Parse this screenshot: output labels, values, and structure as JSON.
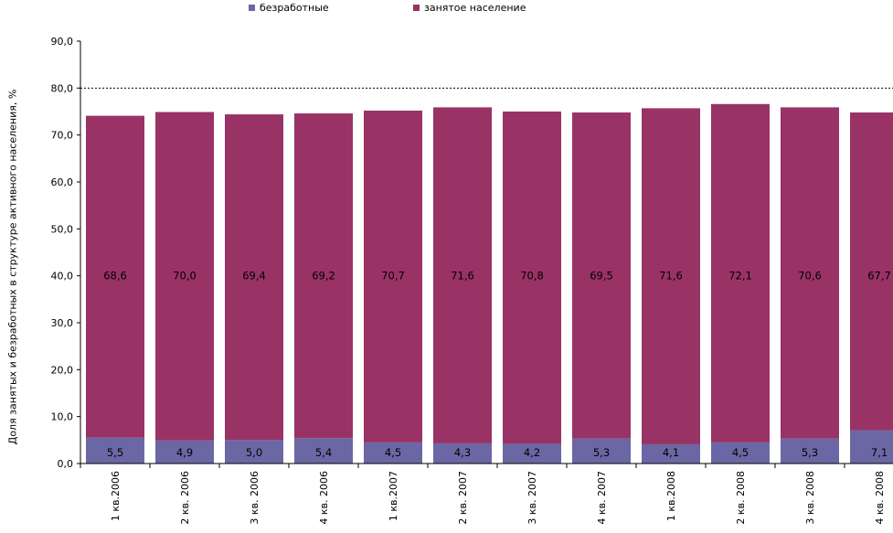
{
  "chart_data": {
    "type": "bar",
    "stacked": true,
    "title": "",
    "xlabel": "",
    "ylabel": "Доля занятых и безработных в структуре активного населения, %",
    "ylim": [
      0,
      90
    ],
    "yticks": [
      "0,0",
      "10,0",
      "20,0",
      "30,0",
      "40,0",
      "50,0",
      "60,0",
      "70,0",
      "80,0",
      "90,0"
    ],
    "grid": "dashed line at 80",
    "legend_position": "top",
    "categories": [
      "1 кв.2006",
      "2 кв. 2006",
      "3 кв. 2006",
      "4 кв. 2006",
      "1 кв.2007",
      "2 кв. 2007",
      "3 кв. 2007",
      "4 кв. 2007",
      "1 кв.2008",
      "2 кв. 2008",
      "3 кв. 2008",
      "4 кв. 2008"
    ],
    "series": [
      {
        "name": "безработные",
        "color": "#6b67a4",
        "values": [
          5.5,
          4.9,
          5.0,
          5.4,
          4.5,
          4.3,
          4.2,
          5.3,
          4.1,
          4.5,
          5.3,
          7.1
        ],
        "labels": [
          "5,5",
          "4,9",
          "5,0",
          "5,4",
          "4,5",
          "4,3",
          "4,2",
          "5,3",
          "4,1",
          "4,5",
          "5,3",
          "7,1"
        ]
      },
      {
        "name": "занятое население",
        "color": "#993366",
        "values": [
          68.6,
          70.0,
          69.4,
          69.2,
          70.7,
          71.6,
          70.8,
          69.5,
          71.6,
          72.1,
          70.6,
          67.7
        ],
        "labels": [
          "68,6",
          "70,0",
          "69,4",
          "69,2",
          "70,7",
          "71,6",
          "70,8",
          "69,5",
          "71,6",
          "72,1",
          "70,6",
          "67,7"
        ]
      }
    ]
  }
}
